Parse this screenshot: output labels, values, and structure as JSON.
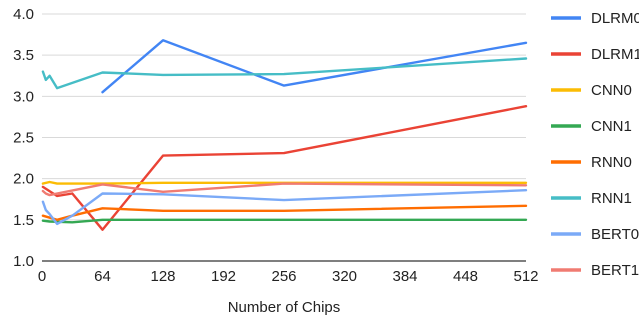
{
  "chart_data": {
    "type": "line",
    "title": "",
    "xlabel": "Number of Chips",
    "ylabel": "",
    "xlim": [
      0,
      512
    ],
    "ylim": [
      1.0,
      4.0
    ],
    "xticks": [
      0,
      64,
      128,
      192,
      256,
      320,
      384,
      448,
      512
    ],
    "yticks": [
      "1.0",
      "1.5",
      "2.0",
      "2.5",
      "3.0",
      "3.5",
      "4.0"
    ],
    "grid": "horizontal",
    "legend_position": "right",
    "series": [
      {
        "name": "DLRM0",
        "color": "#4285f4",
        "points": [
          [
            64,
            3.05
          ],
          [
            128,
            3.68
          ],
          [
            256,
            3.13
          ],
          [
            512,
            3.65
          ]
        ]
      },
      {
        "name": "DLRM1",
        "color": "#ea4335",
        "points": [
          [
            1,
            1.9
          ],
          [
            16,
            1.79
          ],
          [
            32,
            1.82
          ],
          [
            64,
            1.38
          ],
          [
            128,
            2.28
          ],
          [
            256,
            2.31
          ],
          [
            512,
            2.88
          ]
        ]
      },
      {
        "name": "CNN0",
        "color": "#fbbc04",
        "points": [
          [
            1,
            1.94
          ],
          [
            8,
            1.96
          ],
          [
            16,
            1.94
          ],
          [
            32,
            1.94
          ],
          [
            64,
            1.94
          ],
          [
            128,
            1.95
          ],
          [
            256,
            1.95
          ],
          [
            512,
            1.95
          ]
        ]
      },
      {
        "name": "CNN1",
        "color": "#34a853",
        "points": [
          [
            1,
            1.49
          ],
          [
            8,
            1.48
          ],
          [
            32,
            1.47
          ],
          [
            64,
            1.5
          ],
          [
            128,
            1.5
          ],
          [
            256,
            1.5
          ],
          [
            512,
            1.5
          ]
        ]
      },
      {
        "name": "RNN0",
        "color": "#ff6d01",
        "points": [
          [
            1,
            1.55
          ],
          [
            16,
            1.5
          ],
          [
            32,
            1.55
          ],
          [
            64,
            1.64
          ],
          [
            128,
            1.61
          ],
          [
            256,
            1.61
          ],
          [
            512,
            1.67
          ]
        ]
      },
      {
        "name": "RNN1",
        "color": "#46bdc6",
        "points": [
          [
            1,
            3.3
          ],
          [
            4,
            3.2
          ],
          [
            8,
            3.25
          ],
          [
            16,
            3.1
          ],
          [
            64,
            3.29
          ],
          [
            128,
            3.26
          ],
          [
            256,
            3.27
          ],
          [
            512,
            3.46
          ]
        ]
      },
      {
        "name": "BERT0",
        "color": "#7baaf7",
        "points": [
          [
            1,
            1.72
          ],
          [
            4,
            1.62
          ],
          [
            8,
            1.57
          ],
          [
            16,
            1.45
          ],
          [
            32,
            1.55
          ],
          [
            64,
            1.82
          ],
          [
            128,
            1.81
          ],
          [
            256,
            1.74
          ],
          [
            512,
            1.86
          ]
        ]
      },
      {
        "name": "BERT1",
        "color": "#f07b72",
        "points": [
          [
            1,
            1.85
          ],
          [
            4,
            1.82
          ],
          [
            8,
            1.8
          ],
          [
            64,
            1.93
          ],
          [
            128,
            1.84
          ],
          [
            256,
            1.94
          ],
          [
            512,
            1.92
          ]
        ]
      }
    ]
  }
}
